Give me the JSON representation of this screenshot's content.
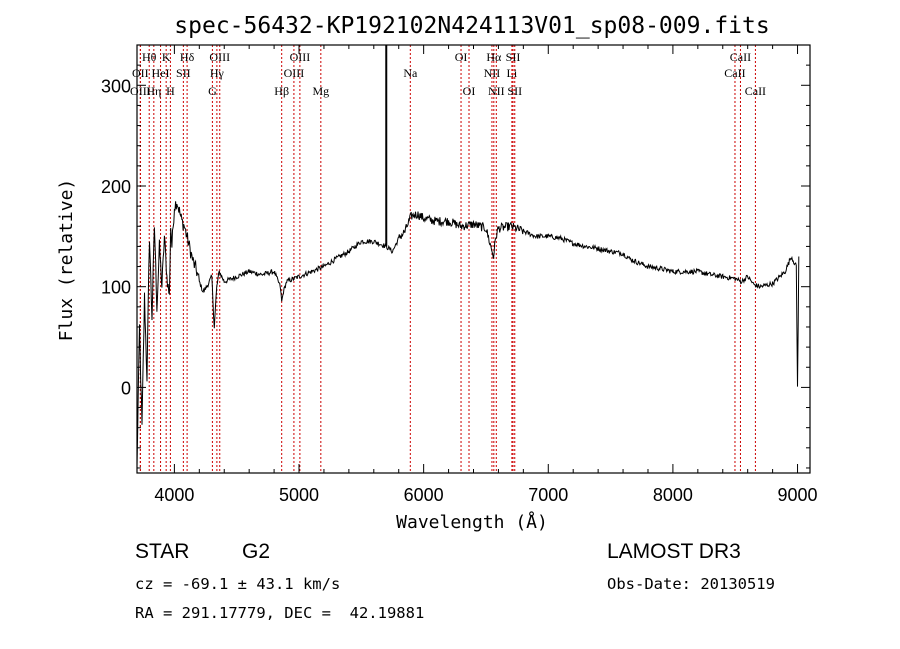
{
  "chart_data": {
    "type": "line",
    "title": "spec-56432-KP192102N424113V01_sp08-009.fits",
    "xlabel": "Wavelength (Å)",
    "ylabel": "Flux (relative)",
    "xlim": [
      3700,
      9100
    ],
    "ylim": [
      -85,
      340
    ],
    "xticks": [
      4000,
      5000,
      6000,
      7000,
      8000,
      9000
    ],
    "yticks": [
      0,
      100,
      200,
      300
    ],
    "grid": false,
    "series": [
      {
        "name": "flux",
        "x": [
          3700,
          3720,
          3740,
          3760,
          3780,
          3800,
          3820,
          3840,
          3860,
          3880,
          3900,
          3920,
          3940,
          3960,
          3970,
          3980,
          4000,
          4020,
          4040,
          4060,
          4080,
          4100,
          4120,
          4150,
          4180,
          4200,
          4230,
          4260,
          4300,
          4320,
          4340,
          4360,
          4400,
          4500,
          4600,
          4700,
          4800,
          4850,
          4861,
          4875,
          4900,
          5000,
          5100,
          5200,
          5300,
          5400,
          5500,
          5600,
          5700,
          5750,
          5800,
          5850,
          5900,
          5950,
          6000,
          6100,
          6200,
          6300,
          6400,
          6500,
          6560,
          6580,
          6600,
          6700,
          6800,
          6900,
          7000,
          7100,
          7200,
          7300,
          7400,
          7500,
          7600,
          7650,
          7700,
          7800,
          7900,
          8000,
          8100,
          8200,
          8300,
          8400,
          8500,
          8550,
          8600,
          8650,
          8700,
          8800,
          8900,
          8950,
          8990,
          9000,
          9010
        ],
        "values": [
          -80,
          60,
          -40,
          90,
          10,
          150,
          70,
          160,
          80,
          140,
          100,
          150,
          110,
          90,
          160,
          140,
          180,
          185,
          175,
          165,
          160,
          150,
          140,
          125,
          115,
          105,
          95,
          100,
          110,
          60,
          100,
          115,
          105,
          110,
          115,
          112,
          115,
          100,
          85,
          95,
          105,
          110,
          115,
          120,
          128,
          135,
          145,
          145,
          140,
          135,
          148,
          155,
          170,
          172,
          168,
          165,
          165,
          160,
          162,
          158,
          130,
          150,
          158,
          160,
          155,
          150,
          150,
          148,
          143,
          140,
          138,
          135,
          133,
          128,
          125,
          120,
          118,
          115,
          115,
          115,
          112,
          110,
          108,
          105,
          110,
          102,
          100,
          103,
          115,
          130,
          120,
          0,
          130
        ]
      }
    ],
    "spike": {
      "x": 5700,
      "y_top": 340,
      "y_bottom": 140
    },
    "lines": [
      {
        "name": "Hθ",
        "x": 3798,
        "row": 1
      },
      {
        "name": "K",
        "x": 3934,
        "row": 1
      },
      {
        "name": "Hδ",
        "x": 4102,
        "row": 1
      },
      {
        "name": "OIII",
        "x": 4364,
        "row": 1
      },
      {
        "name": "OIII",
        "x": 5007,
        "row": 1
      },
      {
        "name": "OI",
        "x": 6300,
        "row": 1
      },
      {
        "name": "Hα",
        "x": 6563,
        "row": 1
      },
      {
        "name": "SII",
        "x": 6717,
        "row": 1
      },
      {
        "name": "CaII",
        "x": 8542,
        "row": 1
      },
      {
        "name": "OII",
        "x": 3727,
        "row": 2
      },
      {
        "name": "HeI",
        "x": 3889,
        "row": 2
      },
      {
        "name": "SII",
        "x": 4072,
        "row": 2
      },
      {
        "name": "Hγ",
        "x": 4341,
        "row": 2
      },
      {
        "name": "OIII",
        "x": 4959,
        "row": 2
      },
      {
        "name": "Na",
        "x": 5893,
        "row": 2
      },
      {
        "name": "NII",
        "x": 6548,
        "row": 2
      },
      {
        "name": "Li",
        "x": 6708,
        "row": 2
      },
      {
        "name": "CaII",
        "x": 8498,
        "row": 2
      },
      {
        "name": "OIII",
        "x": 3727,
        "row": 3
      },
      {
        "name": "Hη",
        "x": 3835,
        "row": 3
      },
      {
        "name": "H",
        "x": 3968,
        "row": 3
      },
      {
        "name": "G",
        "x": 4305,
        "row": 3
      },
      {
        "name": "Hβ",
        "x": 4861,
        "row": 3
      },
      {
        "name": "Mg",
        "x": 5175,
        "row": 3
      },
      {
        "name": "OI",
        "x": 6364,
        "row": 3
      },
      {
        "name": "NII",
        "x": 6583,
        "row": 3
      },
      {
        "name": "SII",
        "x": 6731,
        "row": 3
      },
      {
        "name": "CaII",
        "x": 8662,
        "row": 3
      }
    ],
    "marker_color": "#cc0000",
    "line_color": "#000000"
  },
  "info": {
    "object_class": "STAR",
    "subclass": "G2",
    "survey": "LAMOST DR3",
    "cz": "cz = -69.1 ± 43.1 km/s",
    "obs_date": "Obs-Date: 20130519",
    "coords": "RA = 291.17779, DEC =  42.19881"
  }
}
